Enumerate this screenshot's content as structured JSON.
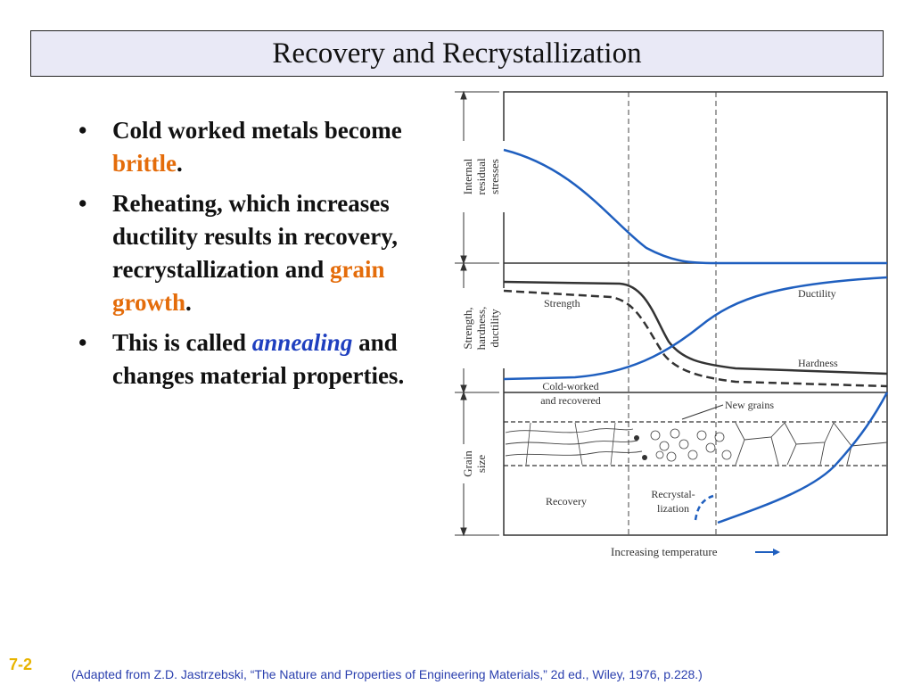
{
  "title": "Recovery and Recrystallization",
  "bullets": [
    {
      "text": " Cold worked metals become ",
      "highlight": "brittle",
      "after": ".",
      "highlight_color": "#e46c0a"
    },
    {
      "text": " Reheating, which increases ductility results in recovery, recrystallization and ",
      "highlight": "grain growth",
      "after": ".",
      "highlight_color": "#e46c0a"
    },
    {
      "text": " This is called ",
      "highlight": "annealing",
      "after": " and changes material properties.",
      "highlight_color": "#1f3fbf"
    }
  ],
  "bullet_symbol": "•",
  "diagram": {
    "panel_labels": {
      "stresses": [
        "Internal",
        "residual",
        "stresses"
      ],
      "properties": [
        "Strength,",
        "hardness,",
        "ductility"
      ],
      "grain": [
        "Grain",
        "size"
      ]
    },
    "curve_labels": {
      "strength": "Strength",
      "ductility": "Ductility",
      "hardness": "Hardness",
      "cold_worked": [
        "Cold-worked",
        "and recovered"
      ],
      "new_grains": "New grains"
    },
    "stage_labels": {
      "recovery": "Recovery",
      "recrystallization": [
        "Recrystal-",
        "lization"
      ]
    },
    "x_axis_label": "Increasing temperature",
    "colors": {
      "curve": "#1f5fbf",
      "line": "#333333"
    }
  },
  "slide_number": "7-2",
  "citation": "(Adapted from Z.D. Jastrzebski, “The Nature and Properties of Engineering Materials,” 2d ed., Wiley, 1976, p.228.)"
}
